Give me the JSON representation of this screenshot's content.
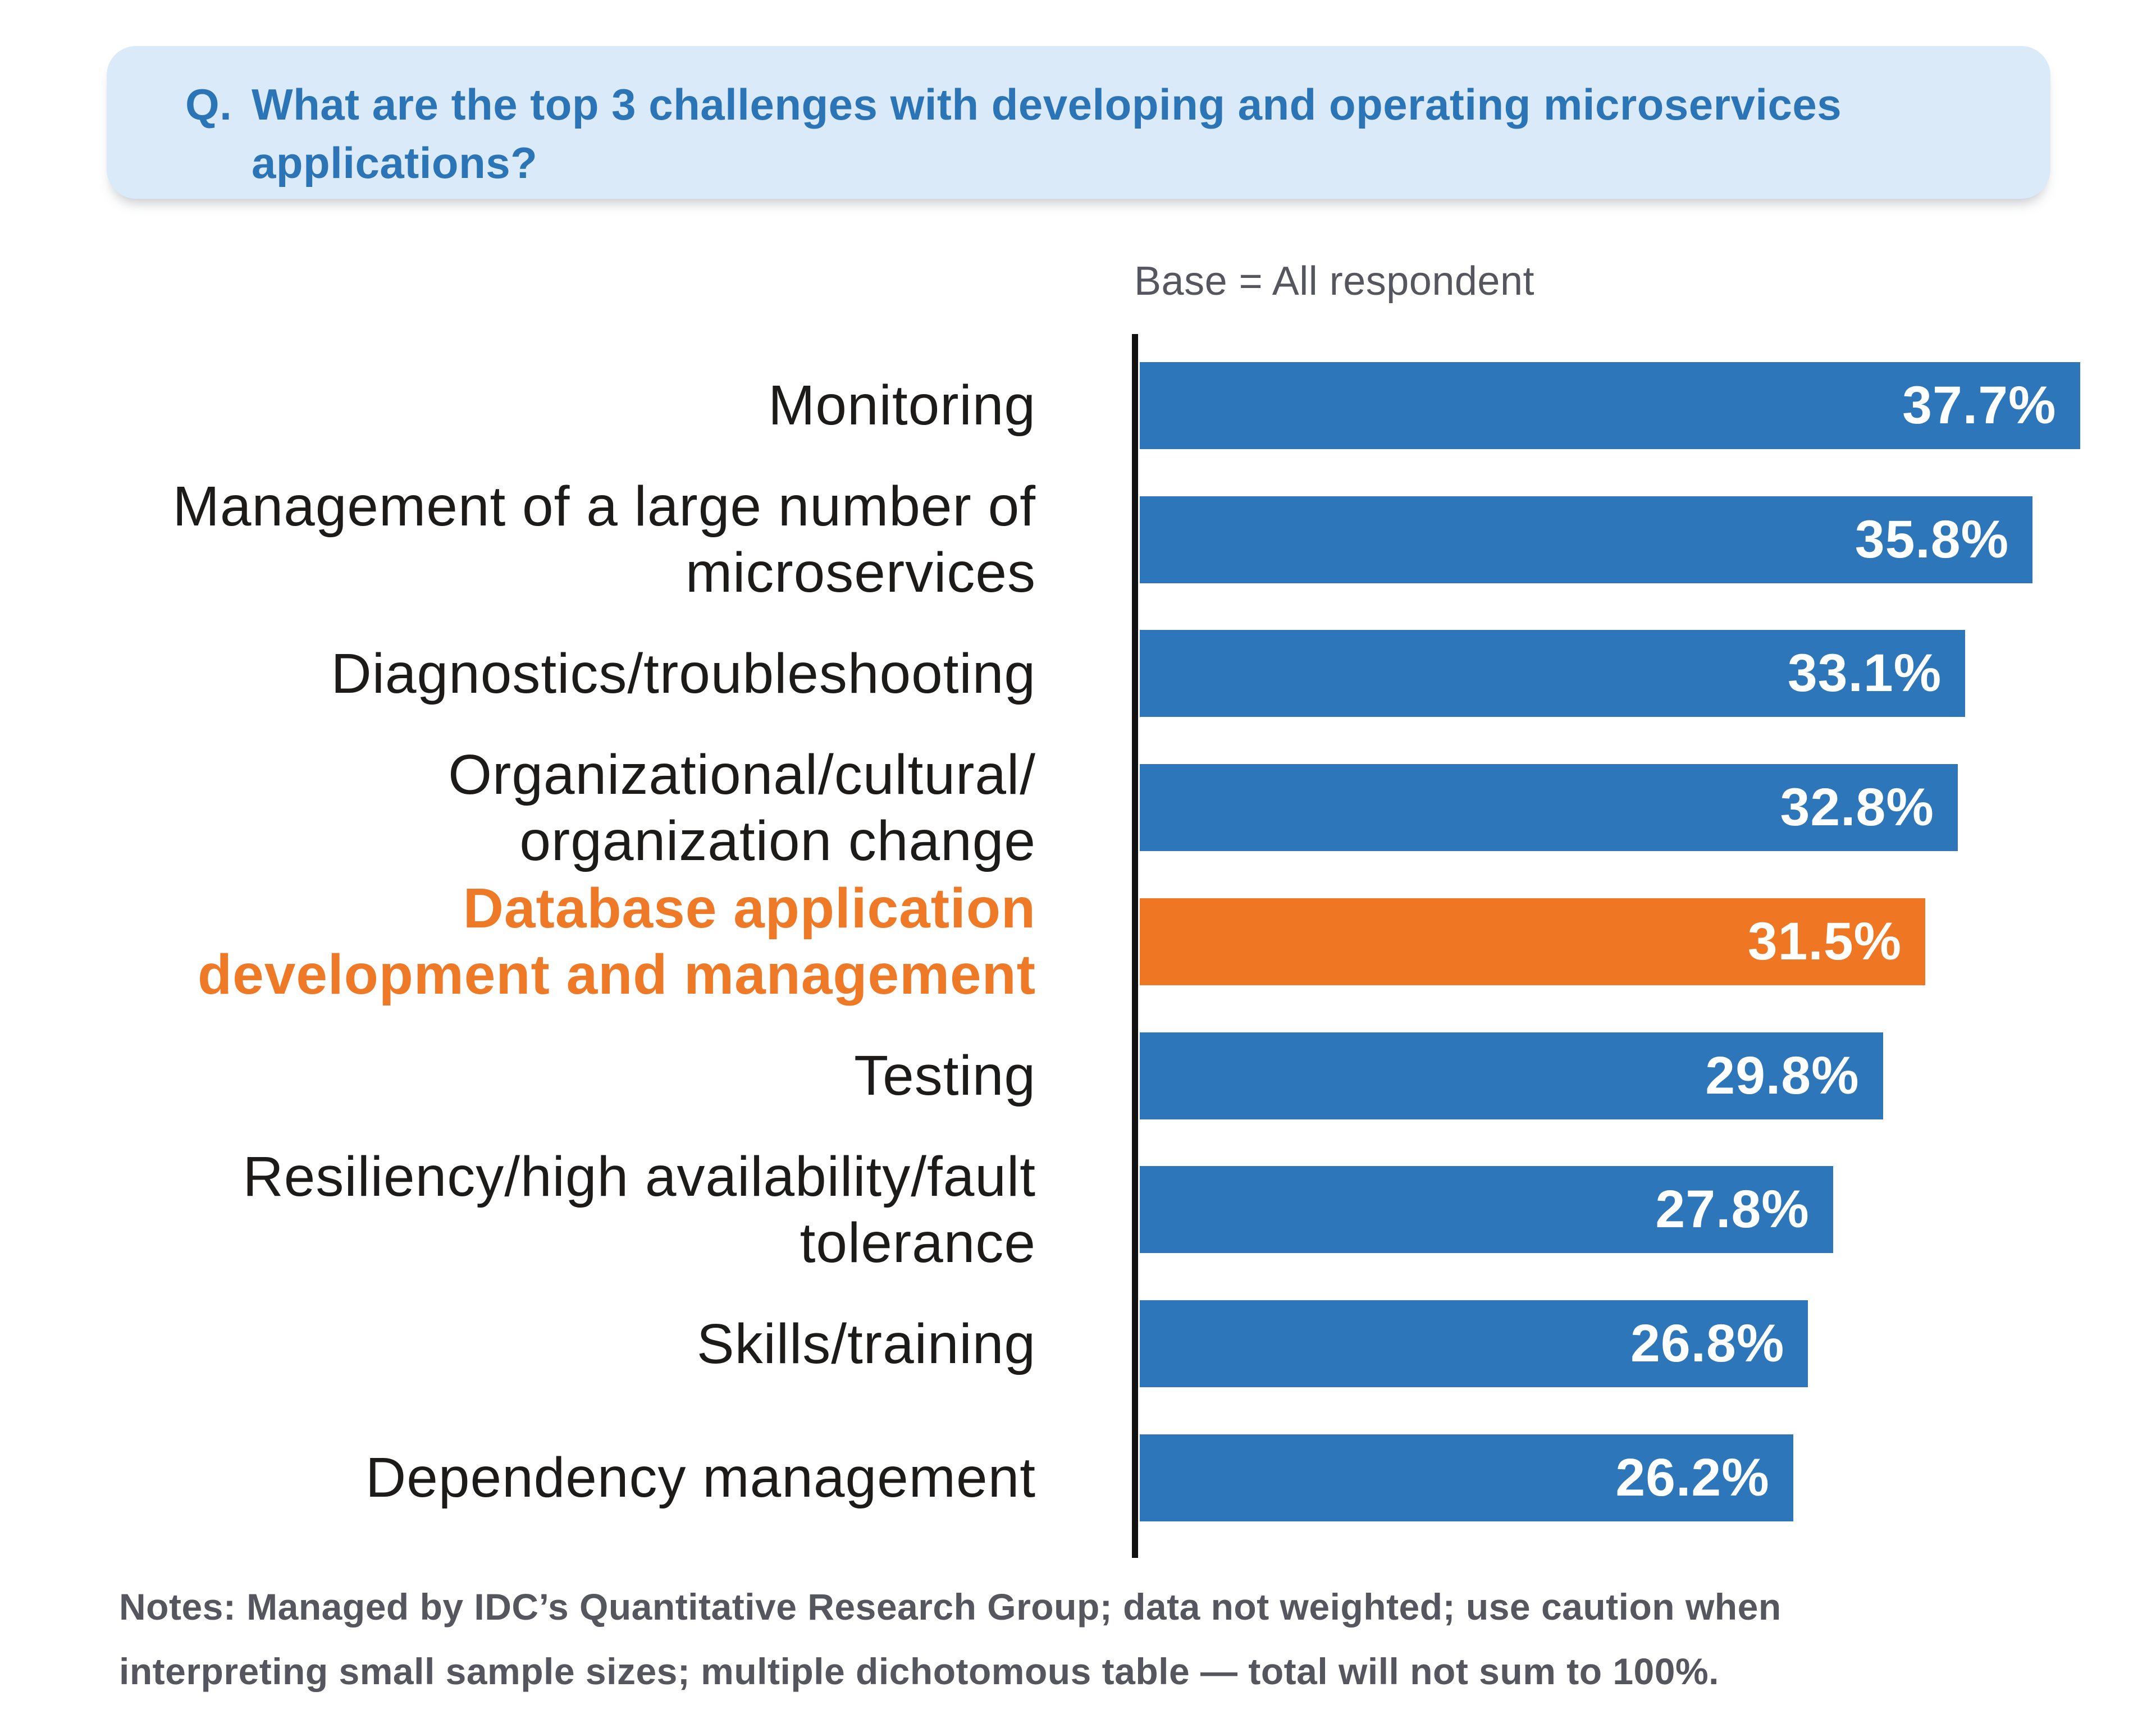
{
  "header": {
    "prefix": "Q.",
    "question": "What are the top 3 challenges with developing and operating microservices\napplications?"
  },
  "chart": {
    "base_label": "Base = All respondent"
  },
  "chart_data": {
    "type": "bar",
    "orientation": "horizontal",
    "title": "",
    "xlabel": "",
    "ylabel": "",
    "grid": false,
    "legend": false,
    "xlim": [
      0,
      40.3
    ],
    "value_suffix": "%",
    "categories": [
      "Monitoring",
      "Management of a large number of\nmicroservices",
      "Diagnostics/troubleshooting",
      "Organizational/cultural/\norganization change",
      "Database application\ndevelopment and management",
      "Testing",
      "Resiliency/high availability/fault\ntolerance",
      "Skills/training",
      "Dependency management"
    ],
    "values": [
      37.7,
      35.8,
      33.1,
      32.8,
      31.5,
      29.8,
      27.8,
      26.8,
      26.2
    ],
    "highlight_index": 4
  },
  "notes": "Notes: Managed by IDC’s Quantitative Research Group; data not weighted; use caution when\ninterpreting small sample sizes; multiple dichotomous table — total will not sum to 100%.",
  "colors": {
    "bar_blue": "#2E76BA",
    "bar_orange": "#EF7622",
    "highlight_label": "#EE7A28",
    "question_text": "#2B75B7",
    "bubble_bg": "#DBEAF8",
    "label_text": "#1C1B1A",
    "muted_text": "#55565E",
    "axis": "#111111"
  }
}
